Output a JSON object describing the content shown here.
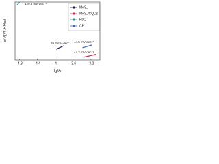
{
  "chart_data": {
    "type": "line",
    "x_label": "lg/A",
    "y_label": "E/V(vs.RHE)",
    "xlim": [
      -4.9,
      -3.0
    ],
    "xticks": [
      -4.8,
      -4.4,
      -4.0,
      -3.6,
      -3.2
    ],
    "ylim": [
      -0.35,
      0.05
    ],
    "legend": "upper right",
    "series": [
      {
        "name": "MoS₂",
        "color": "#1b1b4f",
        "x": [
          -3.98,
          -3.8
        ],
        "values": [
          -0.275,
          -0.25
        ]
      },
      {
        "name": "MoS₂/CQDs",
        "color": "#e0204a",
        "x": [
          -3.36,
          -3.08
        ],
        "values": [
          -0.33,
          -0.31
        ]
      },
      {
        "name": "Pt/C",
        "color": "#2a8fa0",
        "x": [
          -4.86,
          -4.8
        ],
        "values": [
          0.028,
          0.048
        ]
      },
      {
        "name": "CP",
        "color": "#3a5fcd",
        "x": [
          -3.39,
          -3.18
        ],
        "values": [
          -0.265,
          -0.246
        ]
      }
    ],
    "annotations": [
      "120.5 mV·dec⁻¹",
      "69.3 mV·dec⁻¹",
      "44.5 mV·dec⁻¹",
      "44.2 mV·dec⁻¹"
    ]
  }
}
